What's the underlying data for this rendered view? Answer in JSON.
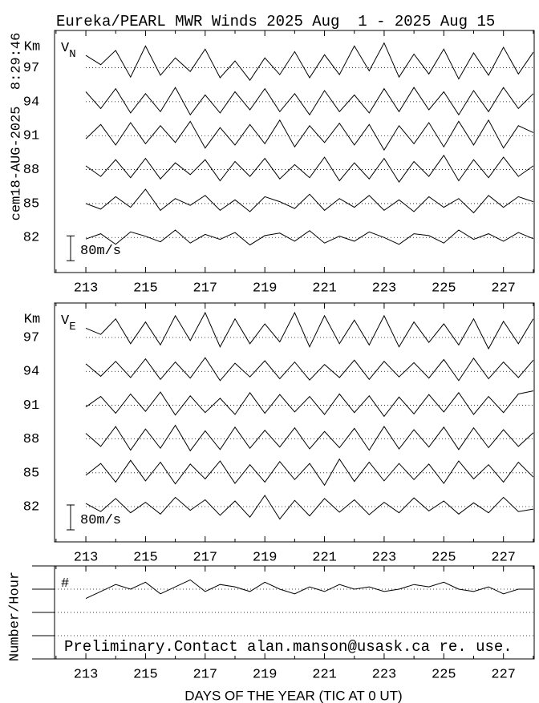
{
  "title": "Eureka/PEARL MWR Winds 2025 Aug  1 - 2025 Aug 15",
  "timestamp": "cem18-AUG-2025  8:29:46",
  "chart_data": [
    {
      "type": "line",
      "label": "V",
      "label_sub": "N",
      "y_unit": "Km",
      "xlim": [
        211.95,
        228.03
      ],
      "xticks": [
        213,
        215,
        217,
        219,
        221,
        223,
        225,
        227
      ],
      "xminorticks": [
        212,
        214,
        216,
        218,
        220,
        222,
        224,
        226,
        228
      ],
      "ylim": [
        78.9,
        100.3
      ],
      "yticks": [
        82,
        85,
        88,
        91,
        94,
        97
      ],
      "ytick_labels": true,
      "grid": true,
      "scale_bar": {
        "value": 80,
        "label": "80m/s"
      },
      "x": [
        213,
        213.5,
        214,
        214.5,
        215,
        215.5,
        216,
        216.5,
        217,
        217.5,
        218,
        218.5,
        219,
        219.5,
        220,
        220.5,
        221,
        221.5,
        222,
        222.5,
        223,
        223.5,
        224,
        224.5,
        225,
        225.5,
        226,
        226.5,
        227,
        227.5,
        228
      ],
      "series": [
        {
          "color": "#000000",
          "values": [
            -5,
            12,
            -22,
            18,
            4,
            -14,
            24,
            -18,
            10,
            -6,
            16,
            -24,
            6,
            14,
            -12,
            22,
            -18,
            4,
            -12,
            18,
            0,
            -22,
            12,
            6,
            -18,
            24,
            -6,
            12,
            -12,
            16,
            -4
          ]
        },
        {
          "color": "#000000",
          "values": [
            0,
            -18,
            22,
            -12,
            46,
            -22,
            16,
            -6,
            26,
            -22,
            12,
            -26,
            22,
            6,
            -16,
            30,
            -22,
            16,
            -12,
            26,
            -22,
            12,
            -26,
            22,
            -12,
            16,
            -30,
            26,
            -12,
            22,
            6
          ]
        },
        {
          "color": "#000000",
          "values": [
            12,
            -22,
            32,
            -26,
            36,
            -30,
            22,
            -16,
            32,
            -36,
            26,
            -22,
            36,
            -30,
            16,
            -26,
            40,
            -36,
            22,
            -30,
            36,
            -40,
            26,
            -22,
            46,
            -36,
            32,
            -26,
            40,
            -22,
            12
          ]
        },
        {
          "color": "#000000",
          "values": [
            -10,
            36,
            -30,
            42,
            -26,
            32,
            -22,
            46,
            -40,
            26,
            -30,
            36,
            -26,
            50,
            -36,
            32,
            -22,
            40,
            -30,
            36,
            -46,
            32,
            -26,
            42,
            -36,
            46,
            -30,
            50,
            -40,
            32,
            10
          ]
        },
        {
          "color": "#000000",
          "values": [
            32,
            -22,
            42,
            -36,
            26,
            -32,
            46,
            -42,
            22,
            -36,
            32,
            -26,
            42,
            -32,
            26,
            -42,
            36,
            -32,
            22,
            -36,
            42,
            -32,
            46,
            -26,
            32,
            -42,
            36,
            -32,
            46,
            -22,
            26
          ]
        },
        {
          "color": "#000000",
          "values": [
            40,
            10,
            56,
            -30,
            70,
            -24,
            32,
            -12,
            60,
            -32,
            22,
            -40,
            32,
            -22,
            52,
            -32,
            42,
            -22,
            70,
            -10,
            80,
            -30,
            44,
            -20,
            60,
            -36,
            48,
            -24,
            66,
            -20,
            50
          ]
        }
      ]
    },
    {
      "type": "line",
      "label": "V",
      "label_sub": "E",
      "y_unit": "Km",
      "xlim": [
        211.95,
        228.03
      ],
      "xticks": [
        213,
        215,
        217,
        219,
        221,
        223,
        225,
        227
      ],
      "xminorticks": [
        212,
        214,
        216,
        218,
        220,
        222,
        224,
        226,
        228
      ],
      "ylim": [
        78.87,
        100.06
      ],
      "yticks": [
        82,
        85,
        88,
        91,
        94,
        97
      ],
      "ytick_labels": true,
      "grid": true,
      "scale_bar": {
        "value": 80,
        "label": "80m/s"
      },
      "x": [
        213,
        213.5,
        214,
        214.5,
        215,
        215.5,
        216,
        216.5,
        217,
        217.5,
        218,
        218.5,
        219,
        219.5,
        220,
        220.5,
        221,
        221.5,
        222,
        222.5,
        223,
        223.5,
        224,
        224.5,
        225,
        225.5,
        226,
        226.5,
        227,
        227.5,
        228
      ],
      "series": [
        {
          "color": "#000000",
          "values": [
            10,
            -16,
            26,
            -20,
            14,
            -24,
            30,
            -12,
            22,
            -28,
            18,
            -34,
            36,
            -40,
            20,
            -30,
            26,
            -18,
            22,
            -26,
            14,
            -20,
            28,
            -14,
            18,
            -24,
            12,
            -20,
            30,
            -16,
            -8
          ]
        },
        {
          "color": "#000000",
          "values": [
            -8,
            30,
            -30,
            40,
            -26,
            34,
            -36,
            28,
            -20,
            38,
            -34,
            26,
            -30,
            36,
            -22,
            30,
            -40,
            44,
            -28,
            34,
            -26,
            30,
            -22,
            28,
            -34,
            38,
            -20,
            26,
            -30,
            34,
            -14
          ]
        },
        {
          "color": "#000000",
          "values": [
            18,
            -24,
            40,
            -36,
            32,
            -30,
            44,
            -38,
            26,
            -34,
            38,
            -30,
            28,
            -26,
            36,
            -32,
            24,
            -28,
            34,
            -36,
            40,
            -32,
            30,
            -26,
            38,
            -34,
            36,
            -28,
            30,
            -24,
            20
          ]
        },
        {
          "color": "#000000",
          "values": [
            -6,
            28,
            -26,
            36,
            -20,
            42,
            -32,
            30,
            -24,
            22,
            -30,
            40,
            -26,
            34,
            -22,
            28,
            -30,
            36,
            -24,
            30,
            -36,
            26,
            -28,
            34,
            -22,
            40,
            -30,
            28,
            -24,
            36,
            46
          ]
        },
        {
          "color": "#000000",
          "values": [
            24,
            -16,
            32,
            -20,
            40,
            -26,
            30,
            -22,
            44,
            -30,
            26,
            -18,
            34,
            -24,
            30,
            -28,
            22,
            -20,
            36,
            -26,
            32,
            -18,
            28,
            -22,
            38,
            -30,
            42,
            -24,
            30,
            -20,
            36
          ]
        },
        {
          "color": "#000000",
          "values": [
            30,
            10,
            60,
            -20,
            50,
            -24,
            70,
            -10,
            80,
            -30,
            60,
            -20,
            44,
            -14,
            80,
            -30,
            70,
            -20,
            56,
            -24,
            70,
            -30,
            50,
            -16,
            44,
            -24,
            60,
            -36,
            52,
            -20,
            60
          ]
        }
      ]
    },
    {
      "type": "count",
      "label": "#",
      "y_label": "Number/Hour",
      "note": "Preliminary.Contact alan.manson@usask.ca re. use.",
      "x_label": "DAYS OF THE YEAR (TIC AT 0 UT)",
      "xlim": [
        211.95,
        228.03
      ],
      "xticks": [
        213,
        215,
        217,
        219,
        221,
        223,
        225,
        227
      ],
      "xminorticks": [
        212,
        214,
        216,
        218,
        220,
        222,
        224,
        226,
        228
      ],
      "ylim": [
        0,
        4
      ],
      "yticks": [
        1,
        2,
        3
      ],
      "ytick_labels": false,
      "grid": true,
      "x": [
        213,
        213.5,
        214,
        214.5,
        215,
        215.5,
        216,
        216.5,
        217,
        217.5,
        218,
        218.5,
        219,
        219.5,
        220,
        220.5,
        221,
        221.5,
        222,
        222.5,
        223,
        223.5,
        224,
        224.5,
        225,
        225.5,
        226,
        226.5,
        227,
        227.5,
        228
      ],
      "series": [
        {
          "color": "#000000",
          "values": [
            2.6,
            2.9,
            3.2,
            3.0,
            3.3,
            2.8,
            3.1,
            3.4,
            2.9,
            3.2,
            3.1,
            2.9,
            3.3,
            3.0,
            2.8,
            3.1,
            2.9,
            3.2,
            3.0,
            3.1,
            2.9,
            3.0,
            3.2,
            3.1,
            3.3,
            3.0,
            2.9,
            3.1,
            2.8,
            3.0,
            3.0
          ]
        }
      ]
    }
  ]
}
